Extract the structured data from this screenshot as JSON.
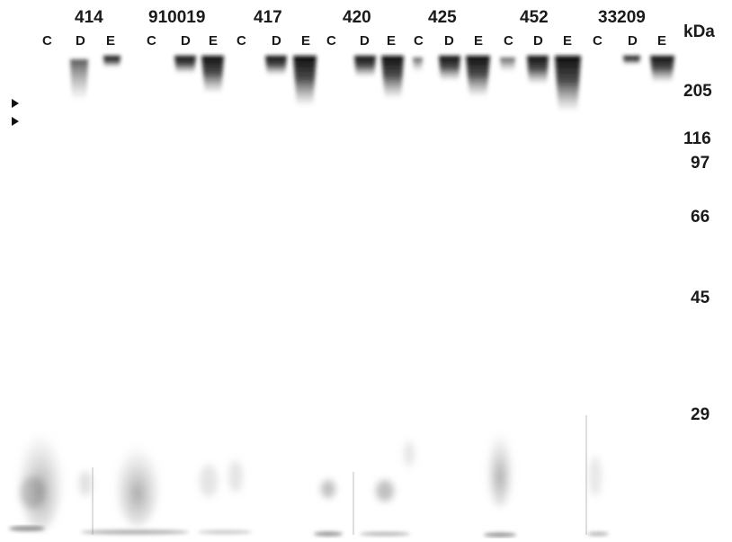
{
  "figure": {
    "strains": [
      "414",
      "910019",
      "417",
      "420",
      "425",
      "452",
      "33209"
    ],
    "lanes": [
      "C",
      "D",
      "E",
      "C",
      "D",
      "E",
      "C",
      "D",
      "E",
      "C",
      "D",
      "E",
      "C",
      "D",
      "E",
      "C",
      "D",
      "E",
      "C",
      "D",
      "E"
    ],
    "unit_label": "kDa",
    "markers": [
      "205",
      "116",
      "97",
      "66",
      "45",
      "29"
    ],
    "colors": {
      "band": "#111111",
      "smear": "#9a9a9a",
      "background": "#ffffff"
    },
    "icons": [
      "arrowhead-marker-icon",
      "arrowhead-marker-icon"
    ]
  }
}
